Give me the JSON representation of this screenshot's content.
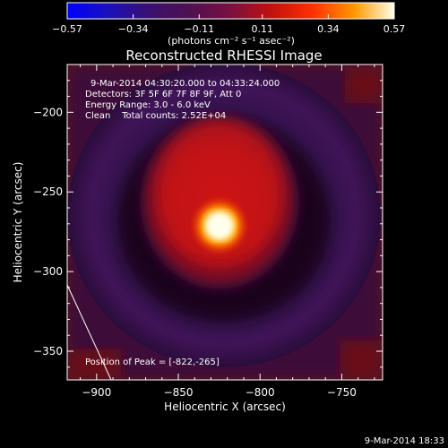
{
  "chart_data": {
    "type": "heatmap",
    "title": "Reconstructed RHESSI Image",
    "xlabel": "Heliocentric X (arcsec)",
    "ylabel": "Heliocentric Y (arcsec)",
    "xlim": [
      -918,
      -725
    ],
    "ylim": [
      -368,
      -170
    ],
    "xticks": [
      -900,
      -850,
      -800,
      -750
    ],
    "yticks": [
      -200,
      -250,
      -300,
      -350
    ],
    "colorbar": {
      "min": -0.57,
      "max": 0.57,
      "ticks": [
        -0.57,
        -0.34,
        -0.11,
        0.11,
        0.34,
        0.57
      ],
      "tick_labels": [
        "-0.57",
        "-0.34",
        "-0.11",
        "0.11",
        "0.34",
        "0.57"
      ],
      "unit_label": "(photons cm⁻² s⁻¹ asec⁻²)"
    },
    "annotations": {
      "time_range": "9-Mar-2014 04:30:20.000 to 04:33:24.000",
      "detectors": "Detectors: 3F 5F 6F 7F 8F 9F, Att 0",
      "energy": "Energy Range: 3.0 - 6.0 keV",
      "clean": "Clean    Total counts: 2.52E+04",
      "peak": "Position of Peak = [-822,-265]"
    },
    "peak": {
      "x": -822,
      "y": -265
    },
    "footer_date": "9-Mar-2014 18:33"
  }
}
